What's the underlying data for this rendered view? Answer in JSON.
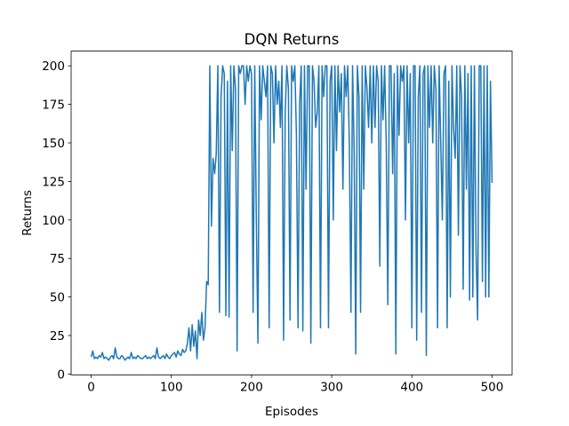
{
  "chart_data": {
    "type": "line",
    "title": "DQN Returns",
    "x_label": "Episodes",
    "y_label": "Returns",
    "color": "#1f77b4",
    "x": [
      0,
      2,
      4,
      6,
      8,
      10,
      12,
      14,
      16,
      18,
      20,
      22,
      24,
      26,
      28,
      30,
      32,
      34,
      36,
      38,
      40,
      42,
      44,
      46,
      48,
      50,
      52,
      54,
      56,
      58,
      60,
      62,
      64,
      66,
      68,
      70,
      72,
      74,
      76,
      78,
      80,
      82,
      84,
      86,
      88,
      90,
      92,
      94,
      96,
      98,
      100,
      102,
      104,
      106,
      108,
      110,
      112,
      114,
      116,
      118,
      120,
      122,
      124,
      126,
      128,
      130,
      132,
      134,
      136,
      138,
      140,
      142,
      144,
      146,
      148,
      150,
      152,
      154,
      156,
      158,
      160,
      162,
      164,
      166,
      168,
      170,
      172,
      174,
      176,
      178,
      180,
      182,
      184,
      186,
      188,
      190,
      192,
      194,
      196,
      198,
      200,
      202,
      204,
      206,
      208,
      210,
      212,
      214,
      216,
      218,
      220,
      222,
      224,
      226,
      228,
      230,
      232,
      234,
      236,
      238,
      240,
      242,
      244,
      246,
      248,
      250,
      252,
      254,
      256,
      258,
      260,
      262,
      264,
      266,
      268,
      270,
      272,
      274,
      276,
      278,
      280,
      282,
      284,
      286,
      288,
      290,
      292,
      294,
      296,
      298,
      300,
      302,
      304,
      306,
      308,
      310,
      312,
      314,
      316,
      318,
      320,
      322,
      324,
      326,
      328,
      330,
      332,
      334,
      336,
      338,
      340,
      342,
      344,
      346,
      348,
      350,
      352,
      354,
      356,
      358,
      360,
      362,
      364,
      366,
      368,
      370,
      372,
      374,
      376,
      378,
      380,
      382,
      384,
      386,
      388,
      390,
      392,
      394,
      396,
      398,
      400,
      402,
      404,
      406,
      408,
      410,
      412,
      414,
      416,
      418,
      420,
      422,
      424,
      426,
      428,
      430,
      432,
      434,
      436,
      438,
      440,
      442,
      444,
      446,
      448,
      450,
      452,
      454,
      456,
      458,
      460,
      462,
      464,
      466,
      468,
      470,
      472,
      474,
      476,
      478,
      480,
      482,
      484,
      486,
      488,
      490,
      492,
      494,
      496,
      498,
      500
    ],
    "values": [
      11,
      15,
      10,
      11,
      10,
      12,
      11,
      14,
      10,
      11,
      10,
      9,
      11,
      12,
      10,
      17,
      11,
      10,
      10,
      12,
      11,
      9,
      10,
      11,
      10,
      14,
      10,
      11,
      10,
      12,
      11,
      10,
      10,
      11,
      12,
      10,
      11,
      10,
      11,
      12,
      10,
      17,
      11,
      10,
      11,
      12,
      10,
      13,
      11,
      10,
      12,
      13,
      14,
      11,
      15,
      13,
      12,
      16,
      14,
      15,
      20,
      30,
      15,
      32,
      18,
      28,
      10,
      35,
      25,
      40,
      22,
      30,
      60,
      58,
      200,
      96,
      140,
      130,
      143,
      200,
      40,
      180,
      200,
      195,
      38,
      190,
      37,
      200,
      145,
      200,
      185,
      15,
      200,
      195,
      200,
      200,
      175,
      200,
      190,
      200,
      195,
      40,
      200,
      100,
      20,
      200,
      165,
      200,
      190,
      180,
      200,
      30,
      200,
      195,
      150,
      200,
      175,
      190,
      160,
      200,
      22,
      170,
      200,
      185,
      35,
      200,
      190,
      200,
      155,
      30,
      175,
      200,
      28,
      200,
      120,
      200,
      200,
      20,
      200,
      190,
      160,
      170,
      200,
      30,
      200,
      180,
      200,
      200,
      30,
      190,
      200,
      100,
      200,
      145,
      200,
      170,
      195,
      120,
      200,
      180,
      200,
      150,
      40,
      200,
      145,
      13,
      200,
      180,
      40,
      200,
      120,
      200,
      185,
      160,
      200,
      150,
      200,
      160,
      200,
      190,
      70,
      200,
      165,
      200,
      150,
      45,
      200,
      200,
      130,
      195,
      13,
      200,
      155,
      200,
      190,
      200,
      100,
      200,
      150,
      195,
      30,
      200,
      200,
      22,
      180,
      200,
      40,
      195,
      200,
      12,
      200,
      160,
      200,
      150,
      200,
      185,
      30,
      200,
      150,
      100,
      195,
      200,
      30,
      190,
      50,
      200,
      160,
      140,
      200,
      90,
      200,
      180,
      55,
      200,
      120,
      195,
      48,
      200,
      50,
      200,
      80,
      35,
      200,
      200,
      60,
      200,
      50,
      200,
      50,
      190,
      124
    ],
    "xlim": [
      -25,
      525
    ],
    "ylim": [
      -0.55,
      209.55
    ],
    "xticks": [
      0,
      100,
      200,
      300,
      400,
      500
    ],
    "yticks": [
      0,
      25,
      50,
      75,
      100,
      125,
      150,
      175,
      200
    ]
  }
}
